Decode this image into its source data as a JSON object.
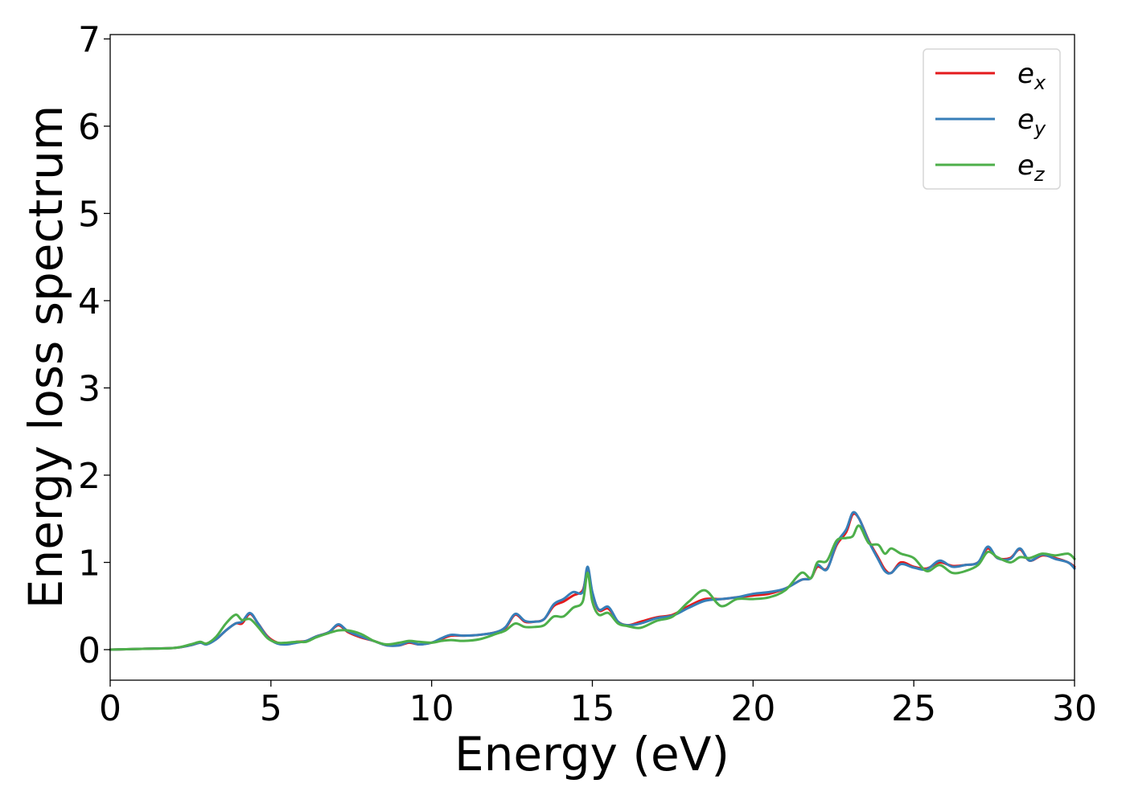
{
  "chart_data": {
    "type": "line",
    "xlabel": "Energy (eV)",
    "ylabel": "Energy loss spectrum",
    "xlim": [
      0,
      30
    ],
    "ylim": [
      -0.35,
      7.05
    ],
    "xticks": [
      0,
      5,
      10,
      15,
      20,
      25,
      30
    ],
    "yticks": [
      0,
      1,
      2,
      3,
      4,
      5,
      6,
      7
    ],
    "legend_position": "top-right",
    "series": [
      {
        "name": "e_x",
        "label_base": "e",
        "label_sub": "x",
        "color": "#e41a1c",
        "x": [
          0,
          1,
          2,
          2.5,
          2.8,
          3.0,
          3.3,
          3.6,
          3.9,
          4.1,
          4.35,
          4.6,
          4.9,
          5.2,
          5.5,
          5.8,
          6.1,
          6.4,
          6.8,
          7.1,
          7.4,
          7.8,
          8.2,
          8.6,
          9.0,
          9.3,
          9.6,
          10.0,
          10.3,
          10.6,
          11.0,
          11.5,
          12.0,
          12.3,
          12.6,
          12.9,
          13.2,
          13.5,
          13.8,
          14.1,
          14.4,
          14.7,
          14.85,
          15.0,
          15.2,
          15.5,
          15.8,
          16.1,
          16.5,
          17.0,
          17.5,
          18.0,
          18.5,
          19.0,
          19.5,
          20.0,
          20.5,
          21.0,
          21.5,
          21.8,
          22.0,
          22.3,
          22.6,
          22.9,
          23.1,
          23.3,
          23.6,
          23.9,
          24.1,
          24.3,
          24.6,
          25.0,
          25.4,
          25.8,
          26.2,
          26.6,
          27.0,
          27.3,
          27.6,
          28.0,
          28.3,
          28.6,
          29.0,
          29.4,
          29.8,
          30
        ],
        "y": [
          0.0,
          0.01,
          0.02,
          0.05,
          0.08,
          0.07,
          0.12,
          0.22,
          0.3,
          0.3,
          0.41,
          0.3,
          0.15,
          0.08,
          0.07,
          0.09,
          0.1,
          0.15,
          0.2,
          0.28,
          0.2,
          0.14,
          0.1,
          0.05,
          0.05,
          0.08,
          0.06,
          0.08,
          0.12,
          0.16,
          0.16,
          0.17,
          0.2,
          0.25,
          0.4,
          0.32,
          0.32,
          0.35,
          0.5,
          0.55,
          0.62,
          0.68,
          0.9,
          0.65,
          0.45,
          0.47,
          0.32,
          0.28,
          0.32,
          0.37,
          0.4,
          0.5,
          0.58,
          0.58,
          0.6,
          0.62,
          0.64,
          0.7,
          0.8,
          0.82,
          0.95,
          0.93,
          1.2,
          1.35,
          1.55,
          1.5,
          1.25,
          1.05,
          0.92,
          0.88,
          1.0,
          0.95,
          0.93,
          1.0,
          0.96,
          0.97,
          1.0,
          1.16,
          1.05,
          1.05,
          1.15,
          1.02,
          1.08,
          1.05,
          1.0,
          0.95
        ]
      },
      {
        "name": "e_y",
        "label_base": "e",
        "label_sub": "y",
        "color": "#377eb8",
        "x": [
          0,
          1,
          2,
          2.5,
          2.8,
          3.0,
          3.3,
          3.6,
          3.9,
          4.1,
          4.35,
          4.6,
          4.9,
          5.2,
          5.5,
          5.8,
          6.1,
          6.4,
          6.8,
          7.1,
          7.4,
          7.8,
          8.2,
          8.6,
          9.0,
          9.3,
          9.6,
          10.0,
          10.3,
          10.6,
          11.0,
          11.5,
          12.0,
          12.3,
          12.6,
          12.9,
          13.2,
          13.5,
          13.8,
          14.1,
          14.4,
          14.7,
          14.85,
          15.0,
          15.2,
          15.5,
          15.8,
          16.1,
          16.5,
          17.0,
          17.5,
          18.0,
          18.5,
          19.0,
          19.5,
          20.0,
          20.5,
          21.0,
          21.5,
          21.8,
          22.0,
          22.3,
          22.6,
          22.9,
          23.1,
          23.3,
          23.6,
          23.9,
          24.1,
          24.3,
          24.6,
          25.0,
          25.4,
          25.8,
          26.2,
          26.6,
          27.0,
          27.3,
          27.6,
          28.0,
          28.3,
          28.6,
          29.0,
          29.4,
          29.8,
          30
        ],
        "y": [
          0.0,
          0.01,
          0.02,
          0.05,
          0.08,
          0.06,
          0.12,
          0.22,
          0.3,
          0.32,
          0.42,
          0.3,
          0.14,
          0.07,
          0.06,
          0.08,
          0.1,
          0.15,
          0.2,
          0.29,
          0.21,
          0.15,
          0.1,
          0.05,
          0.05,
          0.09,
          0.06,
          0.08,
          0.13,
          0.17,
          0.16,
          0.17,
          0.2,
          0.26,
          0.41,
          0.33,
          0.32,
          0.35,
          0.52,
          0.58,
          0.66,
          0.66,
          0.95,
          0.66,
          0.46,
          0.49,
          0.32,
          0.28,
          0.3,
          0.36,
          0.39,
          0.48,
          0.56,
          0.58,
          0.6,
          0.64,
          0.66,
          0.7,
          0.8,
          0.82,
          0.97,
          0.92,
          1.22,
          1.38,
          1.57,
          1.5,
          1.24,
          1.03,
          0.9,
          0.88,
          0.98,
          0.94,
          0.92,
          1.02,
          0.95,
          0.97,
          1.0,
          1.18,
          1.05,
          1.04,
          1.16,
          1.02,
          1.09,
          1.04,
          1.0,
          0.93
        ]
      },
      {
        "name": "e_z",
        "label_base": "e",
        "label_sub": "z",
        "color": "#4daf4a",
        "x": [
          0,
          1,
          2,
          2.5,
          2.8,
          3.0,
          3.3,
          3.6,
          3.9,
          4.1,
          4.35,
          4.6,
          4.9,
          5.2,
          5.5,
          5.8,
          6.1,
          6.4,
          6.8,
          7.1,
          7.4,
          7.8,
          8.2,
          8.6,
          9.0,
          9.3,
          9.6,
          10.0,
          10.3,
          10.6,
          11.0,
          11.5,
          12.0,
          12.3,
          12.6,
          12.9,
          13.2,
          13.5,
          13.8,
          14.1,
          14.4,
          14.7,
          14.85,
          15.0,
          15.2,
          15.5,
          15.8,
          16.1,
          16.5,
          17.0,
          17.5,
          18.0,
          18.5,
          19.0,
          19.5,
          20.0,
          20.5,
          21.0,
          21.5,
          21.8,
          22.0,
          22.3,
          22.6,
          22.9,
          23.1,
          23.3,
          23.6,
          23.9,
          24.1,
          24.3,
          24.6,
          25.0,
          25.4,
          25.8,
          26.2,
          26.6,
          27.0,
          27.3,
          27.6,
          28.0,
          28.3,
          28.6,
          29.0,
          29.4,
          29.8,
          30
        ],
        "y": [
          0.0,
          0.01,
          0.02,
          0.06,
          0.09,
          0.07,
          0.15,
          0.3,
          0.4,
          0.34,
          0.35,
          0.26,
          0.13,
          0.08,
          0.08,
          0.09,
          0.09,
          0.14,
          0.19,
          0.22,
          0.22,
          0.18,
          0.1,
          0.06,
          0.08,
          0.1,
          0.09,
          0.08,
          0.1,
          0.11,
          0.1,
          0.12,
          0.18,
          0.22,
          0.3,
          0.26,
          0.26,
          0.28,
          0.38,
          0.38,
          0.48,
          0.55,
          0.88,
          0.55,
          0.4,
          0.42,
          0.3,
          0.27,
          0.25,
          0.33,
          0.38,
          0.55,
          0.68,
          0.5,
          0.58,
          0.58,
          0.6,
          0.68,
          0.88,
          0.82,
          1.0,
          1.02,
          1.25,
          1.28,
          1.3,
          1.42,
          1.22,
          1.2,
          1.1,
          1.16,
          1.1,
          1.05,
          0.9,
          0.97,
          0.88,
          0.9,
          0.97,
          1.12,
          1.06,
          1.0,
          1.06,
          1.05,
          1.1,
          1.08,
          1.1,
          1.04
        ]
      }
    ]
  }
}
